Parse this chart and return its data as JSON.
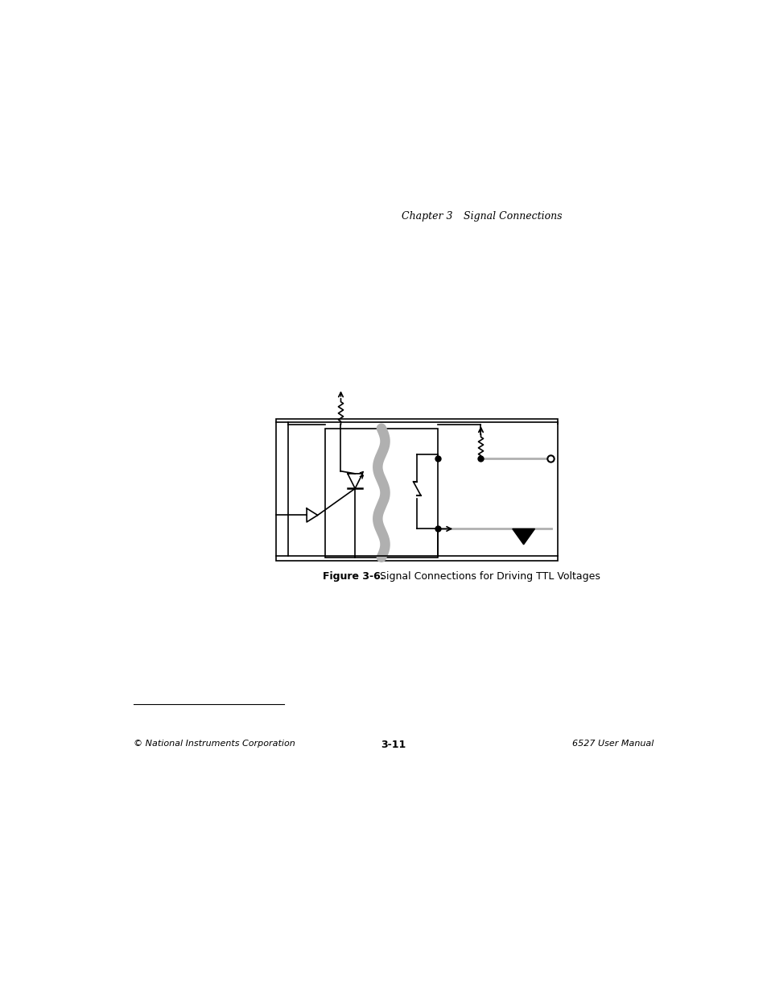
{
  "page_title_left": "Chapter 3",
  "page_title_right": "Signal Connections",
  "figure_caption_bold": "Figure 3-6.",
  "figure_caption_normal": "  Signal Connections for Driving TTL Voltages",
  "footer_left": "© National Instruments Corporation",
  "footer_center": "3-11",
  "footer_right": "6527 User Manual",
  "bg_color": "#ffffff",
  "box_color": "#000000",
  "line_color": "#000000",
  "gray_color": "#b0b0b0"
}
